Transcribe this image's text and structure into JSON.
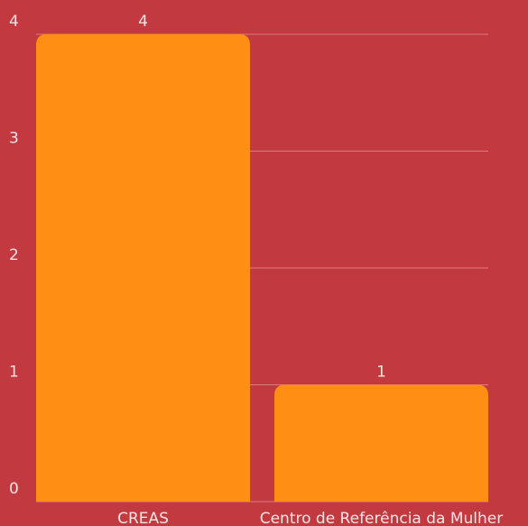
{
  "chart_data": {
    "type": "bar",
    "categories": [
      "CREAS",
      "Centro de Referência da Mulher"
    ],
    "values": [
      4,
      1
    ],
    "color": "#ff8f14",
    "ylim": [
      0,
      4
    ],
    "yticks": [
      0,
      1,
      2,
      3,
      4
    ],
    "grid": true
  }
}
